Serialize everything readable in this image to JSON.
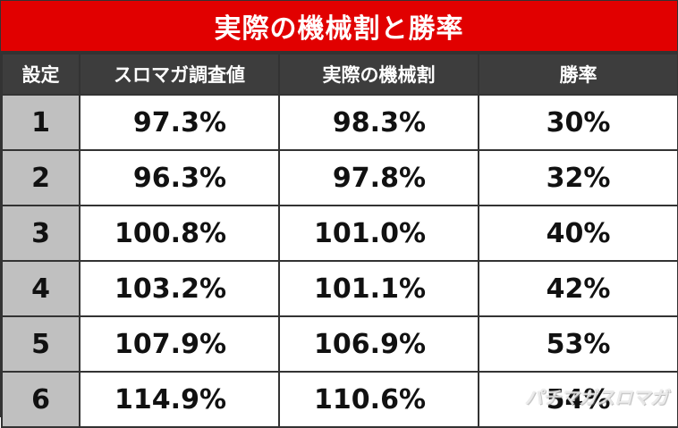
{
  "title": "実際の機械割と勝率",
  "headers": {
    "setting": "設定",
    "slomaga_value": "スロマガ調査値",
    "actual_payout": "実際の機械割",
    "win_rate": "勝率"
  },
  "rows": [
    {
      "setting": "1",
      "slomaga_value": "97.3%",
      "actual_payout": "98.3%",
      "win_rate": "30%"
    },
    {
      "setting": "2",
      "slomaga_value": "96.3%",
      "actual_payout": "97.8%",
      "win_rate": "32%"
    },
    {
      "setting": "3",
      "slomaga_value": "100.8%",
      "actual_payout": "101.0%",
      "win_rate": "40%"
    },
    {
      "setting": "4",
      "slomaga_value": "103.2%",
      "actual_payout": "101.1%",
      "win_rate": "42%"
    },
    {
      "setting": "5",
      "slomaga_value": "107.9%",
      "actual_payout": "106.9%",
      "win_rate": "53%"
    },
    {
      "setting": "6",
      "slomaga_value": "114.9%",
      "actual_payout": "110.6%",
      "win_rate": "54%"
    }
  ],
  "watermark": "パチマガスロマガ",
  "colors": {
    "title_bg": "#e10000",
    "header_bg": "#3d3d3d",
    "setting_bg": "#c0c0c0"
  }
}
